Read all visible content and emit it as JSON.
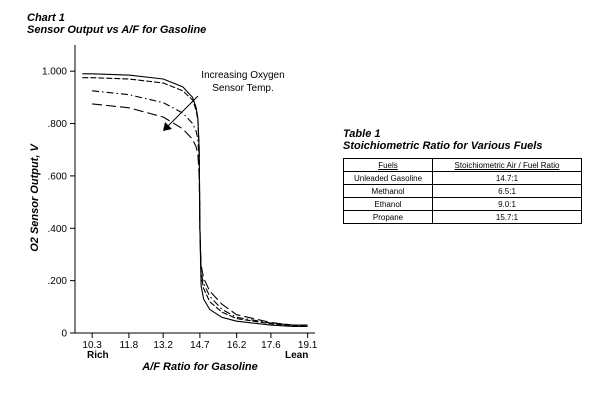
{
  "chart_data": {
    "type": "line",
    "caption": "Chart 1",
    "title": "Sensor Output vs A/F for Gasoline",
    "xlabel": "A/F Ratio for Gasoline",
    "ylabel": "O2 Sensor Output, V",
    "xticks": [
      "10.3",
      "11.8",
      "13.2",
      "14.7",
      "16.2",
      "17.6",
      "19.1"
    ],
    "yticks": [
      "0",
      ".200",
      ".400",
      ".600",
      ".800",
      "1.000"
    ],
    "xlim": [
      9.6,
      19.4
    ],
    "ylim": [
      0,
      1.1
    ],
    "rich_label": "Rich",
    "lean_label": "Lean",
    "annotation": [
      "Increasing Oxygen",
      "Sensor Temp."
    ],
    "grid": false,
    "series": [
      {
        "style": "solid",
        "x": [
          9.9,
          10.3,
          11.8,
          13.2,
          14.0,
          14.4,
          14.55,
          14.62,
          14.67,
          14.7,
          14.75,
          14.85,
          15.1,
          15.6,
          16.2,
          17.6,
          18.5,
          19.1
        ],
        "y": [
          0.99,
          0.99,
          0.985,
          0.97,
          0.94,
          0.9,
          0.86,
          0.82,
          0.7,
          0.4,
          0.18,
          0.13,
          0.09,
          0.06,
          0.045,
          0.03,
          0.025,
          0.025
        ]
      },
      {
        "style": "dashed",
        "x": [
          9.9,
          10.3,
          11.8,
          13.2,
          14.0,
          14.4,
          14.55,
          14.62,
          14.67,
          14.7,
          14.75,
          14.85,
          15.1,
          15.6,
          16.2,
          17.6,
          18.5,
          19.1
        ],
        "y": [
          0.975,
          0.975,
          0.97,
          0.955,
          0.925,
          0.89,
          0.85,
          0.81,
          0.7,
          0.4,
          0.22,
          0.17,
          0.12,
          0.08,
          0.055,
          0.035,
          0.028,
          0.028
        ]
      },
      {
        "style": "dashdot",
        "x": [
          10.3,
          11.8,
          13.2,
          14.0,
          14.4,
          14.55,
          14.62,
          14.67,
          14.7,
          14.75,
          14.85,
          15.1,
          15.6,
          16.2,
          17.6,
          18.5,
          19.1
        ],
        "y": [
          0.925,
          0.91,
          0.88,
          0.84,
          0.8,
          0.77,
          0.74,
          0.65,
          0.4,
          0.23,
          0.19,
          0.14,
          0.09,
          0.06,
          0.038,
          0.03,
          0.03
        ]
      },
      {
        "style": "longdash",
        "x": [
          10.3,
          11.8,
          13.2,
          14.0,
          14.4,
          14.55,
          14.62,
          14.67,
          14.7,
          14.75,
          14.85,
          15.1,
          15.6,
          16.2,
          17.6,
          18.5,
          19.1
        ],
        "y": [
          0.875,
          0.86,
          0.825,
          0.78,
          0.74,
          0.71,
          0.68,
          0.6,
          0.4,
          0.26,
          0.21,
          0.16,
          0.11,
          0.07,
          0.04,
          0.03,
          0.03
        ]
      }
    ]
  },
  "table": {
    "caption": "Table 1",
    "title": "Stoichiometric Ratio for Various Fuels",
    "headers": [
      "Fuels",
      "Stoichiometric Air / Fuel Ratio"
    ],
    "rows": [
      [
        "Unleaded Gasoline",
        "14.7:1"
      ],
      [
        "Methanol",
        "6.5:1"
      ],
      [
        "Ethanol",
        "9.0:1"
      ],
      [
        "Propane",
        "15.7:1"
      ]
    ]
  }
}
